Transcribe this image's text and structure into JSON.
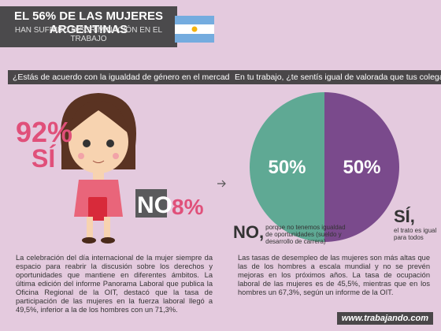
{
  "header": {
    "title": "EL 56% DE LAS MUJERES ARGENTINAS",
    "subtitle": "HAN SUFRIDO DISCRIMINACIÓN EN EL TRABAJO"
  },
  "left": {
    "question": "¿Estás de acuerdo con la igualdad de género en el mercado laboral?",
    "yes": {
      "label": "SÍ",
      "value_label": "92%"
    },
    "no": {
      "label": "NO",
      "value_label": "8%"
    },
    "text": "La celebración del día internacional de la mujer siempre da espacio para reabrir la discusión sobre los derechos y oportunidades que mantiene en diferentes ámbitos. La última edición del informe Panorama Laboral que publica la Oficina Regional de la OIT, destacó que la tasa de participación de las mujeres en la fuerza laboral llegó a 49,5%, inferior a la de los hombres con un 71,3%."
  },
  "right": {
    "question": "En tu trabajo, ¿te sentís igual de valorada que tus colegas hombres?",
    "chart_data": {
      "type": "pie",
      "slices": [
        {
          "label": "SÍ,",
          "note": "el trato es igual para todos",
          "value": 50,
          "value_label": "50%",
          "color": "#7a4a8c"
        },
        {
          "label": "NO,",
          "note": "porque no tenemos igualdad de oportunidades (sueldo y desarrollo de carrera)",
          "value": 50,
          "value_label": "50%",
          "color": "#5fa994"
        }
      ]
    },
    "text": "Las tasas de desempleo de las mujeres son más altas que las de los hombres a escala mundial y no se prevén mejoras en los próximos años. La tasa de ocupación laboral de las mujeres es de 45,5%, mientras que en los hombres un 67,3%, según un informe de la OIT."
  },
  "footer": {
    "site": "www.trabajando.com"
  }
}
